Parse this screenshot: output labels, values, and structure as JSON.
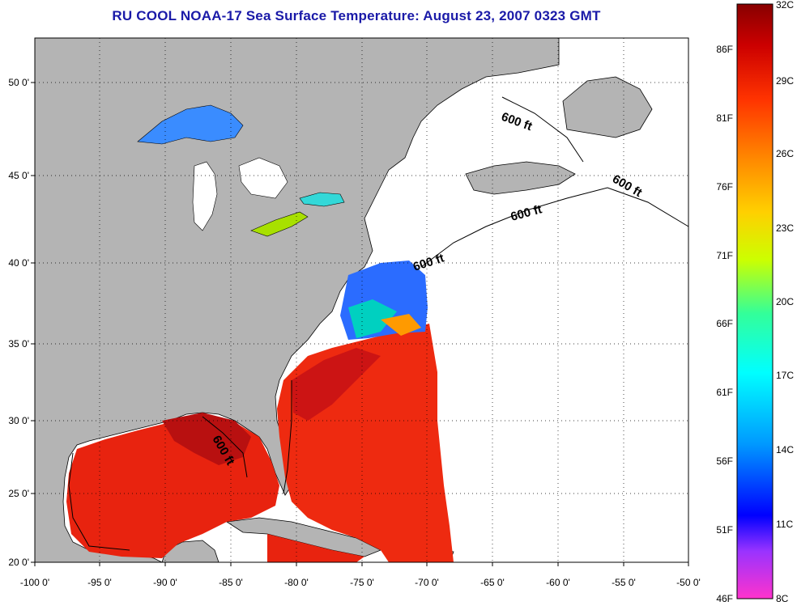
{
  "title": "RU COOL  NOAA-17  Sea Surface Temperature:  August 23, 2007 0323 GMT",
  "axes": {
    "x_ticks": [
      "-100 0'",
      "-95 0'",
      "-90 0'",
      "-85 0'",
      "-80 0'",
      "-75 0'",
      "-70 0'",
      "-65 0'",
      "-60 0'",
      "-55 0'",
      "-50 0'"
    ],
    "y_ticks": [
      "50 0'",
      "45 0'",
      "40 0'",
      "35 0'",
      "30 0'",
      "25 0'",
      "20 0'"
    ],
    "lon_range": [
      -100,
      -50
    ],
    "lat_range": [
      20,
      52.5
    ],
    "grid": "dotted"
  },
  "isobath_labels": [
    "600 ft",
    "600 ft",
    "600 ft",
    "600 ft",
    "600 ft"
  ],
  "colorbar": {
    "fahrenheit_labels": [
      "86F",
      "81F",
      "76F",
      "71F",
      "66F",
      "61F",
      "56F",
      "51F",
      "46F"
    ],
    "celsius_labels": [
      "32C",
      "29C",
      "26C",
      "23C",
      "20C",
      "17C",
      "14C",
      "11C",
      "8C"
    ],
    "range_c": [
      8,
      32
    ],
    "colors": [
      "#ff33cc",
      "#9933ff",
      "#0000ff",
      "#00aaff",
      "#00ffff",
      "#33ff99",
      "#ccff00",
      "#ffd000",
      "#ff8800",
      "#ff3300",
      "#cc0000",
      "#880000"
    ]
  },
  "colors": {
    "land": "#b4b4b4",
    "no_data": "#ffffff",
    "title": "#1a1aa8"
  }
}
